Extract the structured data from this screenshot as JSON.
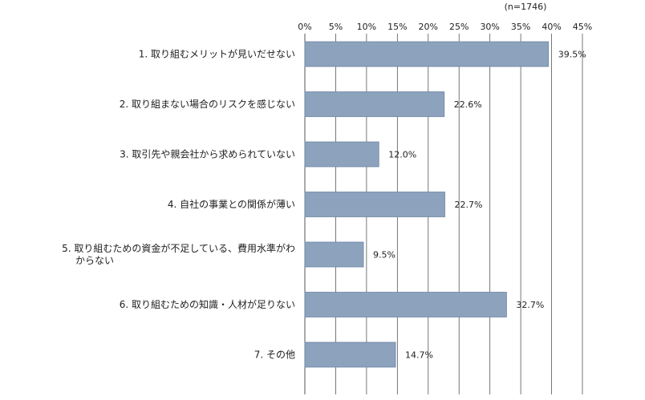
{
  "note": "(n=1746)",
  "chart_data": {
    "type": "bar",
    "orientation": "horizontal",
    "categories": [
      [
        "1. 取り組むメリットが見いだせない"
      ],
      [
        "2. 取り組まない場合のリスクを感じない"
      ],
      [
        "3. 取引先や親会社から求められていない"
      ],
      [
        "4. 自社の事業との関係が薄い"
      ],
      [
        "5. 取り組むための資金が不足している、費用水準がわ",
        "からない"
      ],
      [
        "6. 取り組むための知識・人材が足りない"
      ],
      [
        "7. その他"
      ]
    ],
    "values": [
      39.5,
      22.6,
      12.0,
      22.7,
      9.5,
      32.7,
      14.7
    ],
    "value_labels": [
      "39.5%",
      "22.6%",
      "12.0%",
      "22.7%",
      "9.5%",
      "32.7%",
      "14.7%"
    ],
    "x_ticks": [
      0,
      5,
      10,
      15,
      20,
      25,
      30,
      35,
      40,
      45
    ],
    "x_tick_labels": [
      "0%",
      "5%",
      "10%",
      "15%",
      "20%",
      "25%",
      "30%",
      "35%",
      "40%",
      "45%"
    ],
    "xlim": [
      0,
      45
    ],
    "axis_position": "top",
    "grid": true,
    "bar_color": "#8ca2bd",
    "bar_edge_color": "#6f87a6",
    "grid_color": "#555555"
  }
}
